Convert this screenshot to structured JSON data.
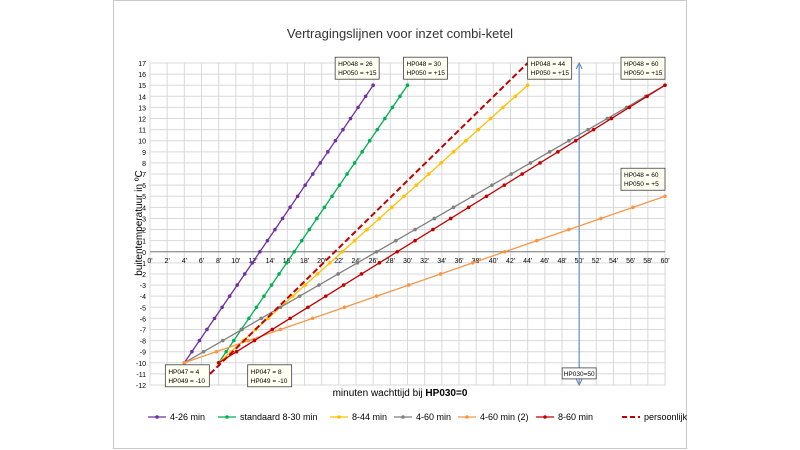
{
  "chart_data": {
    "type": "line",
    "title": "Vertragingslijnen voor inzet combi-ketel",
    "xlabel_prefix": "minuten wachttijd bij ",
    "xlabel_bold": "HP030=0",
    "ylabel": "buitentemperatuur in ºC",
    "xlim": [
      0,
      60
    ],
    "ylim": [
      -12,
      17
    ],
    "x_ticks": [
      "0'",
      "2'",
      "4'",
      "6'",
      "8'",
      "10'",
      "12'",
      "14'",
      "16'",
      "18'",
      "20'",
      "22'",
      "24'",
      "26'",
      "28'",
      "30'",
      "32'",
      "34'",
      "36'",
      "38'",
      "40'",
      "42'",
      "44'",
      "46'",
      "48'",
      "50'",
      "52'",
      "54'",
      "56'",
      "58'",
      "60'"
    ],
    "y_ticks": [
      "17",
      "16",
      "15",
      "14",
      "13",
      "12",
      "11",
      "10",
      "9",
      "8",
      "7",
      "6",
      "5",
      "4",
      "3",
      "2",
      "1",
      "0",
      "-1",
      "-2",
      "-3",
      "-4",
      "-5",
      "-6",
      "-7",
      "-8",
      "-9",
      "-10",
      "-11",
      "-12"
    ],
    "grid": true,
    "legend_position": "bottom",
    "series": [
      {
        "name": "4-26 min",
        "color": "#7030a0",
        "style": "solid",
        "marker": true,
        "x": [
          4,
          26
        ],
        "y": [
          -10,
          15
        ]
      },
      {
        "name": "standaard 8-30 min",
        "color": "#00b050",
        "style": "solid",
        "marker": true,
        "x": [
          8,
          30
        ],
        "y": [
          -10,
          15
        ]
      },
      {
        "name": "8-44 min",
        "color": "#ffc000",
        "style": "solid",
        "marker": true,
        "x": [
          8,
          44
        ],
        "y": [
          -10,
          15
        ]
      },
      {
        "name": "4-60 min",
        "color": "#7f7f7f",
        "style": "solid",
        "marker": true,
        "x": [
          4,
          60
        ],
        "y": [
          -10,
          15
        ]
      },
      {
        "name": "4-60 min (2)",
        "color": "#f79646",
        "style": "solid",
        "marker": true,
        "x": [
          4,
          60
        ],
        "y": [
          -10,
          5
        ]
      },
      {
        "name": "8-60 min",
        "color": "#c00000",
        "style": "solid",
        "marker": true,
        "x": [
          8,
          60
        ],
        "y": [
          -10,
          15
        ]
      },
      {
        "name": "persoonlijk",
        "color": "#c00000",
        "style": "dashed",
        "marker": false,
        "x": [
          7,
          44
        ],
        "y": [
          -11,
          17
        ]
      }
    ],
    "vertical_line": {
      "x": 50,
      "y_range": [
        -12,
        17
      ],
      "color": "#4f81bd",
      "label": "HP030=50"
    },
    "annotations": [
      {
        "lines": [
          "HP048 =  26",
          "HP050 = +15"
        ],
        "x": 26,
        "y": 15
      },
      {
        "lines": [
          "HP048 =  30",
          "HP050 = +15"
        ],
        "x": 30,
        "y": 15
      },
      {
        "lines": [
          "HP048 =  44",
          "HP050 = +15"
        ],
        "x": 44,
        "y": 15
      },
      {
        "lines": [
          "HP048 =  60",
          "HP050 = +15"
        ],
        "x": 60,
        "y": 15
      },
      {
        "lines": [
          "HP048 =  60",
          "HP050 =  +5"
        ],
        "x": 60,
        "y": 5
      },
      {
        "lines": [
          "HP047 =   4",
          "HP049 = -10"
        ],
        "x": 4,
        "y": -10
      },
      {
        "lines": [
          "HP047 =   8",
          "HP049 = -10"
        ],
        "x": 8,
        "y": -10
      }
    ]
  }
}
